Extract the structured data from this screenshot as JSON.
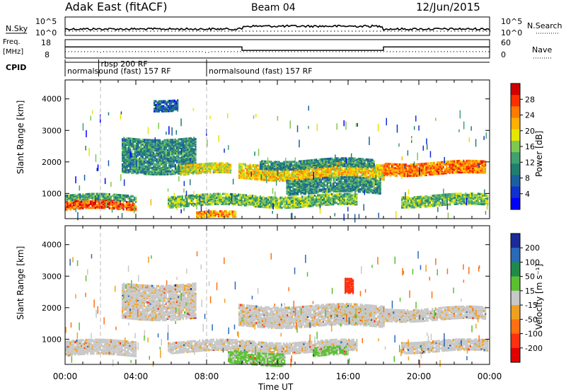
{
  "header": {
    "station": "Adak East (fitACF)",
    "beam": "Beam 04",
    "date": "12/Jun/2015"
  },
  "top_panels": {
    "nsky_label": "N.Sky",
    "nsky_ticks": [
      "10^5",
      "10^0"
    ],
    "nsearch_label": "N.Search",
    "freq_label_1": "Freq.",
    "freq_label_2": "[MHz]",
    "freq_ticks": [
      "18",
      "8"
    ],
    "nave_ticks": [
      "60",
      "0"
    ],
    "nave_label": "Nave",
    "cpid_label": "CPID",
    "cpid_segments": [
      {
        "label": "normalsound (fast) 157 RF",
        "start_h": 0.0,
        "end_h": 8.0
      },
      {
        "label": "rbsp 200 RF",
        "start_h": 1.9,
        "end_h": 2.05
      },
      {
        "label": "normalsound (fast) 157 RF",
        "start_h": 8.0,
        "end_h": 24.0
      }
    ],
    "freq_trace": [
      {
        "from_h": 0,
        "to_h": 10.0,
        "mhz": 10.2
      },
      {
        "from_h": 10.0,
        "to_h": 18.0,
        "mhz": 8.3
      },
      {
        "from_h": 18.0,
        "to_h": 24.0,
        "mhz": 10.2
      }
    ]
  },
  "chart_data": [
    {
      "type": "heatmap",
      "title": "Power",
      "ylabel": "Slant Range [km]",
      "xlabel": "Time UT",
      "xlim": [
        0,
        24
      ],
      "ylim": [
        200,
        4600
      ],
      "x_tick_labels": [
        "00:00",
        "04:00",
        "08:00",
        "12:00",
        "16:00",
        "20:00",
        "00:00"
      ],
      "y_ticks": [
        1000,
        2000,
        3000,
        4000
      ],
      "colorbar": {
        "label": "Power [dB]",
        "ticks": [
          "28",
          "24",
          "20",
          "16",
          "12",
          "8",
          "4"
        ],
        "colors": [
          "#d00000",
          "#ff3000",
          "#ff7a00",
          "#ffb000",
          "#e6e600",
          "#7fc850",
          "#40a070",
          "#207f70",
          "#1a5fa0",
          "#1030d0",
          "#0000ff"
        ]
      },
      "bands": [
        {
          "from_h": 0.0,
          "to_h": 4.0,
          "range_km": [
            520,
            800
          ],
          "power_db": 26
        },
        {
          "from_h": 0.0,
          "to_h": 4.0,
          "range_km": [
            800,
            1000
          ],
          "power_db": 12
        },
        {
          "from_h": 5.8,
          "to_h": 16.5,
          "range_km": [
            640,
            1000
          ],
          "power_db": 14
        },
        {
          "from_h": 7.4,
          "to_h": 9.6,
          "range_km": [
            250,
            420
          ],
          "power_db": 22
        },
        {
          "from_h": 3.2,
          "to_h": 7.4,
          "range_km": [
            1700,
            2800
          ],
          "power_db": 10
        },
        {
          "from_h": 6.5,
          "to_h": 9.4,
          "range_km": [
            1650,
            1950
          ],
          "power_db": 18
        },
        {
          "from_h": 9.8,
          "to_h": 18.0,
          "range_km": [
            1500,
            1950
          ],
          "power_db": 20
        },
        {
          "from_h": 11.0,
          "to_h": 17.5,
          "range_km": [
            1850,
            2100
          ],
          "power_db": 10
        },
        {
          "from_h": 18.0,
          "to_h": 23.8,
          "range_km": [
            1650,
            2050
          ],
          "power_db": 24
        },
        {
          "from_h": 19.0,
          "to_h": 23.9,
          "range_km": [
            650,
            1000
          ],
          "power_db": 14
        },
        {
          "from_h": 12.5,
          "to_h": 17.8,
          "range_km": [
            1050,
            1500
          ],
          "power_db": 10
        },
        {
          "from_h": 5.0,
          "to_h": 6.4,
          "range_km": [
            3700,
            4050
          ],
          "power_db": 6
        }
      ]
    },
    {
      "type": "heatmap",
      "title": "Velocity",
      "ylabel": "Slant Range [km]",
      "xlabel": "Time UT",
      "xlim": [
        0,
        24
      ],
      "ylim": [
        200,
        4600
      ],
      "x_tick_labels": [
        "00:00",
        "04:00",
        "08:00",
        "12:00",
        "16:00",
        "20:00",
        "00:00"
      ],
      "y_ticks": [
        1000,
        2000,
        3000,
        4000
      ],
      "colorbar": {
        "label": "Velocity [m s⁻¹]",
        "ticks": [
          "200",
          "100",
          "50",
          "15",
          "-15",
          "-50",
          "-100",
          "-200"
        ],
        "colors": [
          "#1a2a9a",
          "#2a6ab8",
          "#1f8a4a",
          "#5ac030",
          "#c8c8c8",
          "#f0a020",
          "#ff7010",
          "#ff3010",
          "#e00000"
        ]
      },
      "bands": [
        {
          "from_h": 0.0,
          "to_h": 4.0,
          "range_km": [
            520,
            1000
          ],
          "velocity": 0
        },
        {
          "from_h": 5.8,
          "to_h": 16.5,
          "range_km": [
            640,
            1000
          ],
          "velocity": 0
        },
        {
          "from_h": 9.2,
          "to_h": 12.4,
          "range_km": [
            250,
            620
          ],
          "velocity": 40
        },
        {
          "from_h": 14.0,
          "to_h": 16.0,
          "range_km": [
            500,
            760
          ],
          "velocity": 40
        },
        {
          "from_h": 15.2,
          "to_h": 17.2,
          "range_km": [
            1500,
            2000
          ],
          "velocity": 40
        },
        {
          "from_h": 3.2,
          "to_h": 7.4,
          "range_km": [
            1700,
            2800
          ],
          "velocity": 0
        },
        {
          "from_h": 9.8,
          "to_h": 18.0,
          "range_km": [
            1450,
            2100
          ],
          "velocity": 0
        },
        {
          "from_h": 18.0,
          "to_h": 23.8,
          "range_km": [
            1650,
            2050
          ],
          "velocity": 0
        },
        {
          "from_h": 19.0,
          "to_h": 23.9,
          "range_km": [
            650,
            1000
          ],
          "velocity": 0
        },
        {
          "from_h": 15.8,
          "to_h": 16.3,
          "range_km": [
            2450,
            2900
          ],
          "velocity": -180
        }
      ]
    }
  ]
}
